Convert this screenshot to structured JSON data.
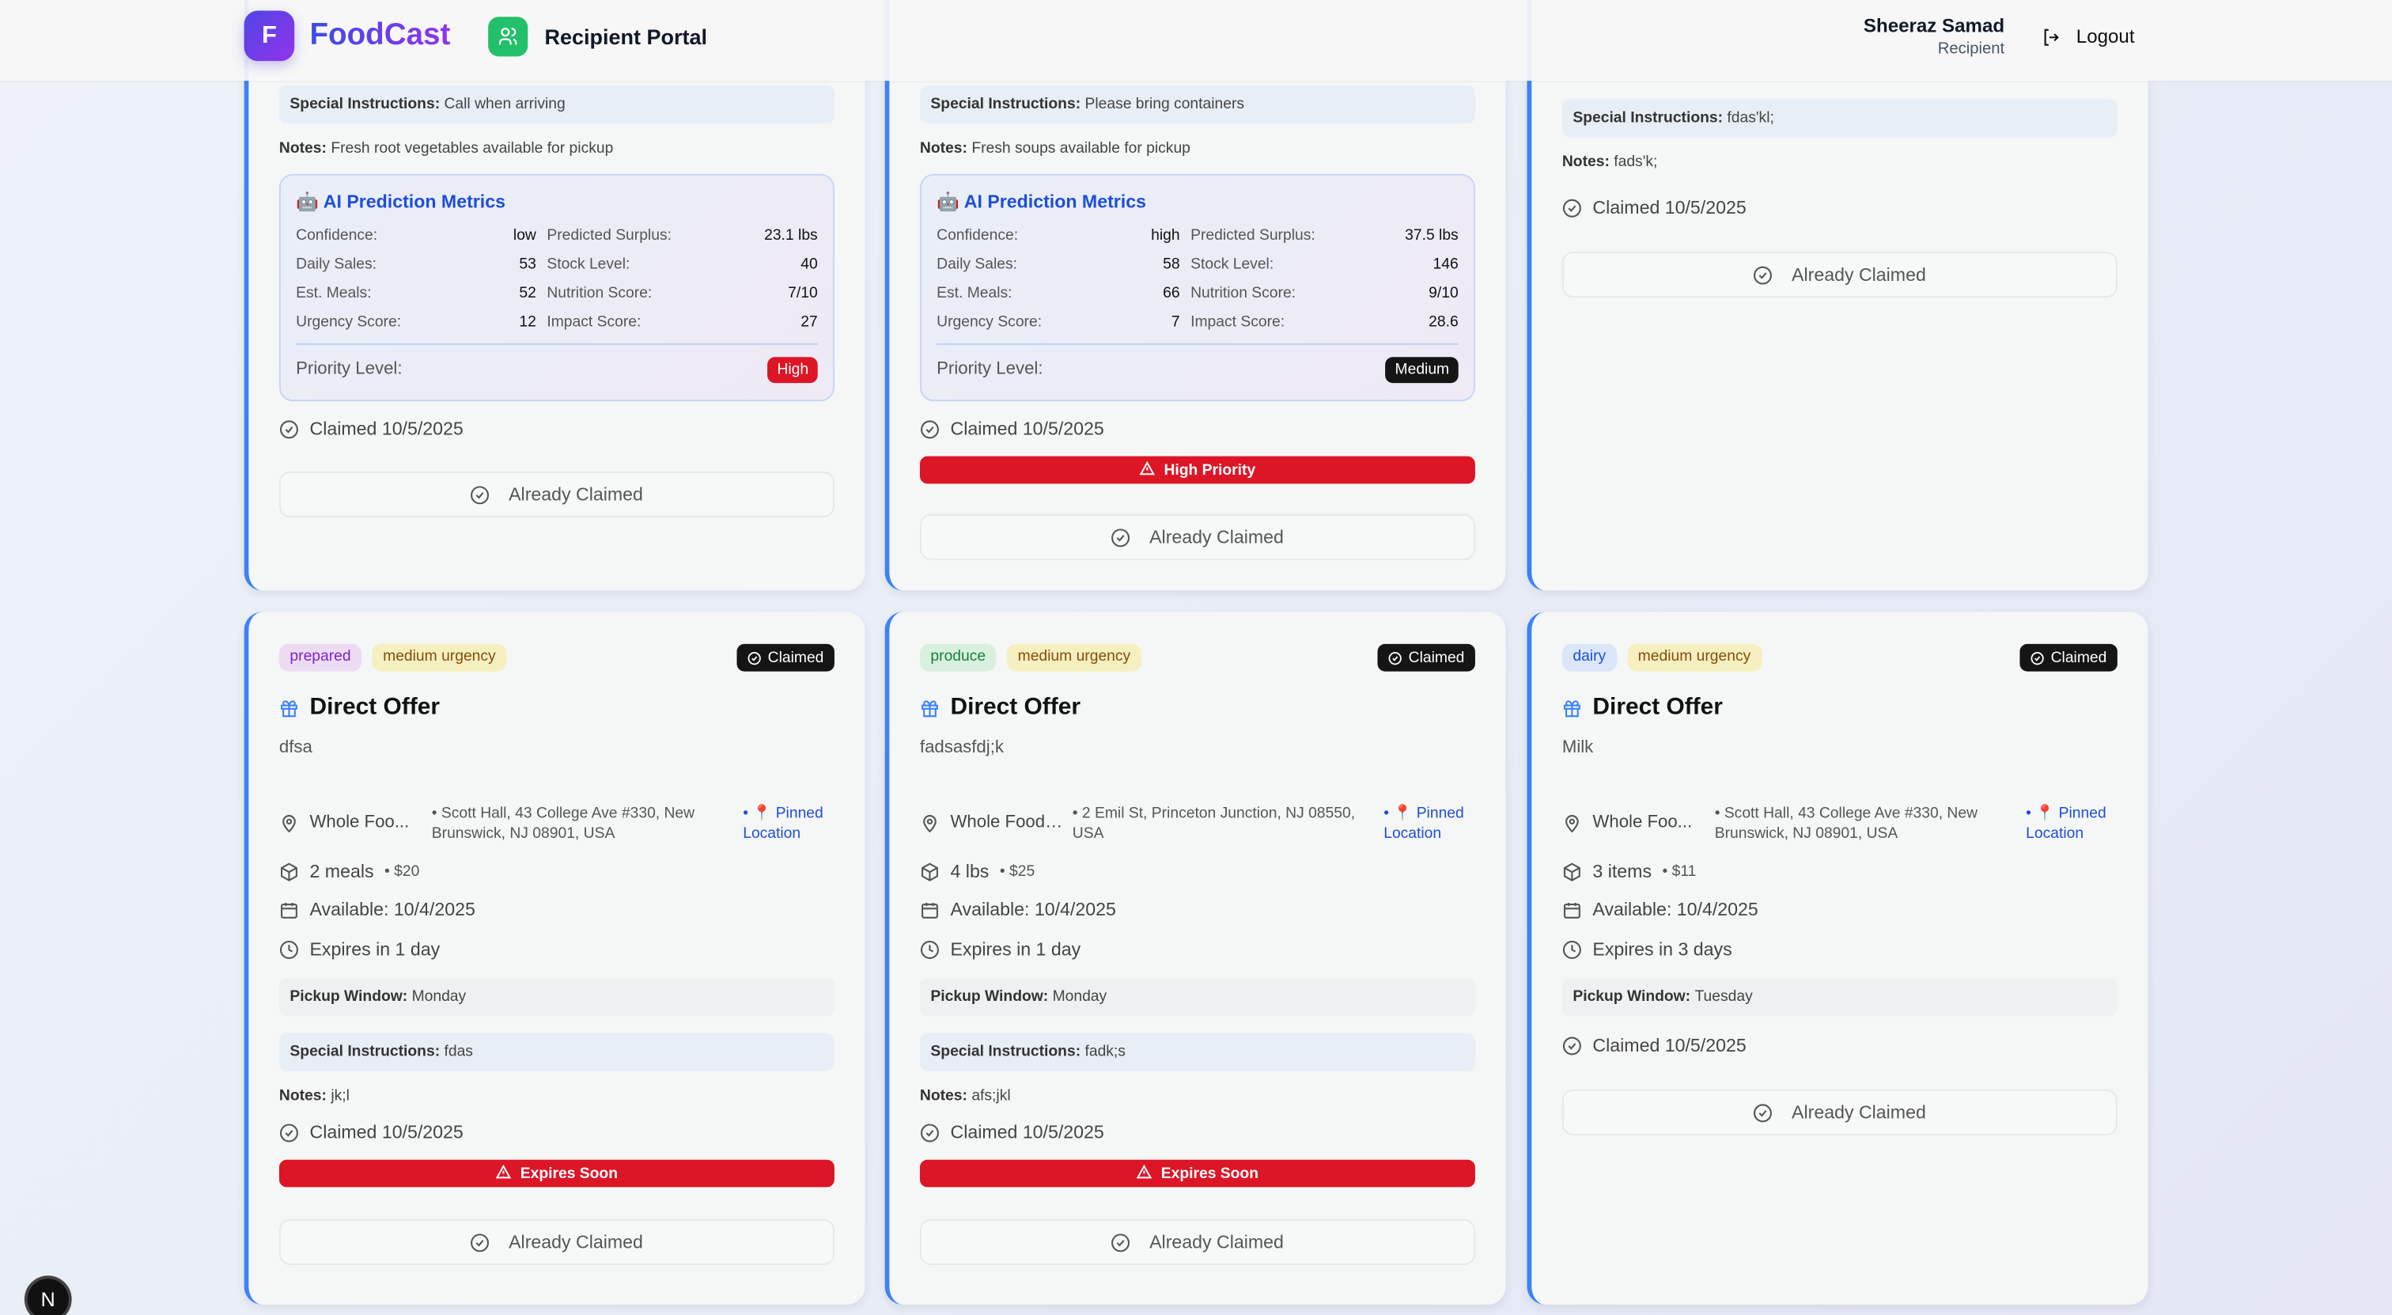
{
  "header": {
    "logo_letter": "F",
    "brand": "FoodCast",
    "portal": "Recipient Portal",
    "user_name": "Sheeraz Samad",
    "user_role": "Recipient",
    "logout": "Logout"
  },
  "labels": {
    "special": "Special Instructions:",
    "notes": "Notes:",
    "pickup": "Pickup Window:",
    "already": "Already Claimed",
    "claimed_badge": "Claimed",
    "ai_title": "AI Prediction Metrics",
    "confidence": "Confidence:",
    "surplus": "Predicted Surplus:",
    "daily": "Daily Sales:",
    "stock": "Stock Level:",
    "meals": "Est. Meals:",
    "nutrition": "Nutrition Score:",
    "urgency": "Urgency Score:",
    "impact": "Impact Score:",
    "priority": "Priority Level:",
    "high_priority": "High Priority",
    "expires_soon": "Expires Soon",
    "pinned": "• 📍 Pinned Location"
  },
  "top_cards": [
    {
      "special": "Call when arriving",
      "notes": "Fresh root vegetables available for pickup",
      "ai": {
        "confidence": "low",
        "surplus": "23.1 lbs",
        "daily": "53",
        "stock": "40",
        "meals": "52",
        "nutrition": "7/10",
        "urgency": "12",
        "impact": "27",
        "priority": "High",
        "priority_color": "#dc1626"
      },
      "claimed": "Claimed 10/5/2025"
    },
    {
      "special": "Please bring containers",
      "notes": "Fresh soups available for pickup",
      "ai": {
        "confidence": "high",
        "surplus": "37.5 lbs",
        "daily": "58",
        "stock": "146",
        "meals": "66",
        "nutrition": "9/10",
        "urgency": "7",
        "impact": "28.6",
        "priority": "Medium",
        "priority_color": "#151515"
      },
      "claimed": "Claimed 10/5/2025",
      "high_priority": true
    },
    {
      "special": "fdas'kl;",
      "notes": "fads'k;",
      "claimed": "Claimed 10/5/2025"
    }
  ],
  "bottom_cards": [
    {
      "category": "prepared",
      "urgency": "medium urgency",
      "title": "Direct Offer",
      "desc": "dfsa",
      "store": "Whole Foo...",
      "address": "• Scott Hall, 43 College Ave #330, New Brunswick, NJ 08901, USA",
      "qty": "2 meals",
      "price": "• $20",
      "available": "Available: 10/4/2025",
      "expires": "Expires in 1 day",
      "pickup": "Monday",
      "special": "fdas",
      "notes": "jk;l",
      "claimed": "Claimed 10/5/2025",
      "expires_soon": true
    },
    {
      "category": "produce",
      "urgency": "medium urgency",
      "title": "Direct Offer",
      "desc": "fadsasfdj;k",
      "store": "Whole Foods ...",
      "address": "• 2 Emil St, Princeton Junction, NJ 08550, USA",
      "qty": "4 lbs",
      "price": "• $25",
      "available": "Available: 10/4/2025",
      "expires": "Expires in 1 day",
      "pickup": "Monday",
      "special": "fadk;s",
      "notes": "afs;jkl",
      "claimed": "Claimed 10/5/2025",
      "expires_soon": true
    },
    {
      "category": "dairy",
      "urgency": "medium urgency",
      "title": "Direct Offer",
      "desc": "Milk",
      "store": "Whole Foo...",
      "address": "• Scott Hall, 43 College Ave #330, New Brunswick, NJ 08901, USA",
      "qty": "3 items",
      "price": "• $11",
      "available": "Available: 10/4/2025",
      "expires": "Expires in 3 days",
      "pickup": "Tuesday",
      "claimed": "Claimed 10/5/2025"
    }
  ],
  "category_colors": {
    "prepared": [
      "#ecdcf3",
      "#7e22ce"
    ],
    "produce": [
      "#d9f0de",
      "#15803d"
    ],
    "dairy": [
      "#dbe6fb",
      "#1d4ed8"
    ]
  },
  "urgency_colors": [
    "#f6efbf",
    "#854d0e"
  ],
  "dev_badge": "N"
}
